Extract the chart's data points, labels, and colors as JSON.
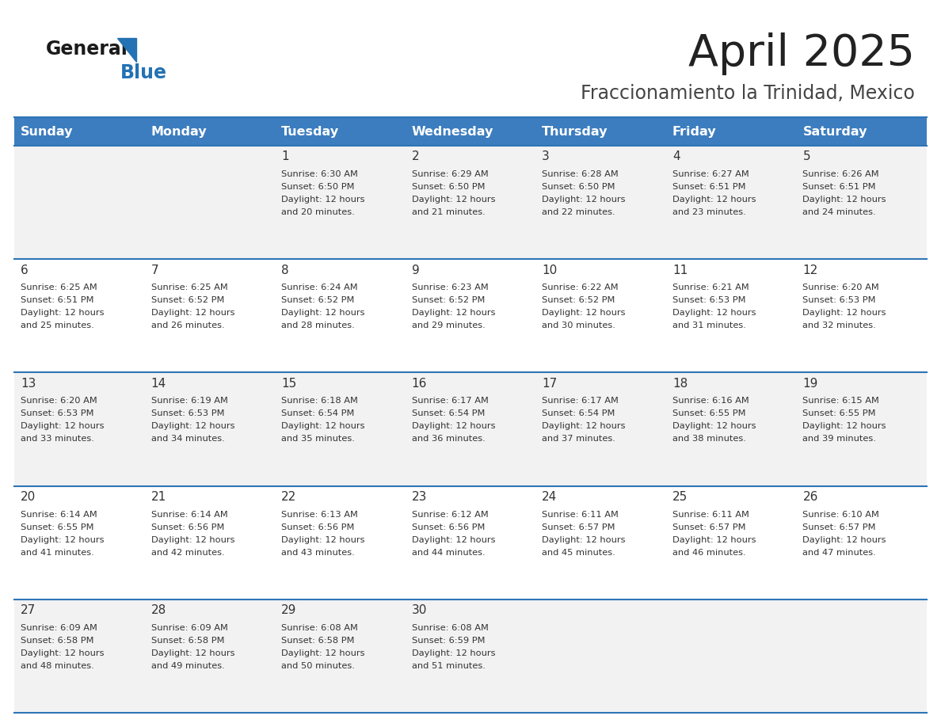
{
  "title": "April 2025",
  "subtitle": "Fraccionamiento la Trinidad, Mexico",
  "header_color": "#3C7DBF",
  "header_text_color": "#FFFFFF",
  "row_bg_odd": "#F2F2F2",
  "row_bg_even": "#FFFFFF",
  "border_color": "#2E75B6",
  "text_color": "#333333",
  "days_of_week": [
    "Sunday",
    "Monday",
    "Tuesday",
    "Wednesday",
    "Thursday",
    "Friday",
    "Saturday"
  ],
  "calendar": [
    [
      {
        "day": "",
        "sunrise": "",
        "sunset": "",
        "daylight_min": null
      },
      {
        "day": "",
        "sunrise": "",
        "sunset": "",
        "daylight_min": null
      },
      {
        "day": "1",
        "sunrise": "6:30 AM",
        "sunset": "6:50 PM",
        "daylight_min": 20
      },
      {
        "day": "2",
        "sunrise": "6:29 AM",
        "sunset": "6:50 PM",
        "daylight_min": 21
      },
      {
        "day": "3",
        "sunrise": "6:28 AM",
        "sunset": "6:50 PM",
        "daylight_min": 22
      },
      {
        "day": "4",
        "sunrise": "6:27 AM",
        "sunset": "6:51 PM",
        "daylight_min": 23
      },
      {
        "day": "5",
        "sunrise": "6:26 AM",
        "sunset": "6:51 PM",
        "daylight_min": 24
      }
    ],
    [
      {
        "day": "6",
        "sunrise": "6:25 AM",
        "sunset": "6:51 PM",
        "daylight_min": 25
      },
      {
        "day": "7",
        "sunrise": "6:25 AM",
        "sunset": "6:52 PM",
        "daylight_min": 26
      },
      {
        "day": "8",
        "sunrise": "6:24 AM",
        "sunset": "6:52 PM",
        "daylight_min": 28
      },
      {
        "day": "9",
        "sunrise": "6:23 AM",
        "sunset": "6:52 PM",
        "daylight_min": 29
      },
      {
        "day": "10",
        "sunrise": "6:22 AM",
        "sunset": "6:52 PM",
        "daylight_min": 30
      },
      {
        "day": "11",
        "sunrise": "6:21 AM",
        "sunset": "6:53 PM",
        "daylight_min": 31
      },
      {
        "day": "12",
        "sunrise": "6:20 AM",
        "sunset": "6:53 PM",
        "daylight_min": 32
      }
    ],
    [
      {
        "day": "13",
        "sunrise": "6:20 AM",
        "sunset": "6:53 PM",
        "daylight_min": 33
      },
      {
        "day": "14",
        "sunrise": "6:19 AM",
        "sunset": "6:53 PM",
        "daylight_min": 34
      },
      {
        "day": "15",
        "sunrise": "6:18 AM",
        "sunset": "6:54 PM",
        "daylight_min": 35
      },
      {
        "day": "16",
        "sunrise": "6:17 AM",
        "sunset": "6:54 PM",
        "daylight_min": 36
      },
      {
        "day": "17",
        "sunrise": "6:17 AM",
        "sunset": "6:54 PM",
        "daylight_min": 37
      },
      {
        "day": "18",
        "sunrise": "6:16 AM",
        "sunset": "6:55 PM",
        "daylight_min": 38
      },
      {
        "day": "19",
        "sunrise": "6:15 AM",
        "sunset": "6:55 PM",
        "daylight_min": 39
      }
    ],
    [
      {
        "day": "20",
        "sunrise": "6:14 AM",
        "sunset": "6:55 PM",
        "daylight_min": 41
      },
      {
        "day": "21",
        "sunrise": "6:14 AM",
        "sunset": "6:56 PM",
        "daylight_min": 42
      },
      {
        "day": "22",
        "sunrise": "6:13 AM",
        "sunset": "6:56 PM",
        "daylight_min": 43
      },
      {
        "day": "23",
        "sunrise": "6:12 AM",
        "sunset": "6:56 PM",
        "daylight_min": 44
      },
      {
        "day": "24",
        "sunrise": "6:11 AM",
        "sunset": "6:57 PM",
        "daylight_min": 45
      },
      {
        "day": "25",
        "sunrise": "6:11 AM",
        "sunset": "6:57 PM",
        "daylight_min": 46
      },
      {
        "day": "26",
        "sunrise": "6:10 AM",
        "sunset": "6:57 PM",
        "daylight_min": 47
      }
    ],
    [
      {
        "day": "27",
        "sunrise": "6:09 AM",
        "sunset": "6:58 PM",
        "daylight_min": 48
      },
      {
        "day": "28",
        "sunrise": "6:09 AM",
        "sunset": "6:58 PM",
        "daylight_min": 49
      },
      {
        "day": "29",
        "sunrise": "6:08 AM",
        "sunset": "6:58 PM",
        "daylight_min": 50
      },
      {
        "day": "30",
        "sunrise": "6:08 AM",
        "sunset": "6:59 PM",
        "daylight_min": 51
      },
      {
        "day": "",
        "sunrise": "",
        "sunset": "",
        "daylight_min": null
      },
      {
        "day": "",
        "sunrise": "",
        "sunset": "",
        "daylight_min": null
      },
      {
        "day": "",
        "sunrise": "",
        "sunset": "",
        "daylight_min": null
      }
    ]
  ],
  "logo_color_general": "#1a1a1a",
  "logo_color_blue": "#2472B3"
}
